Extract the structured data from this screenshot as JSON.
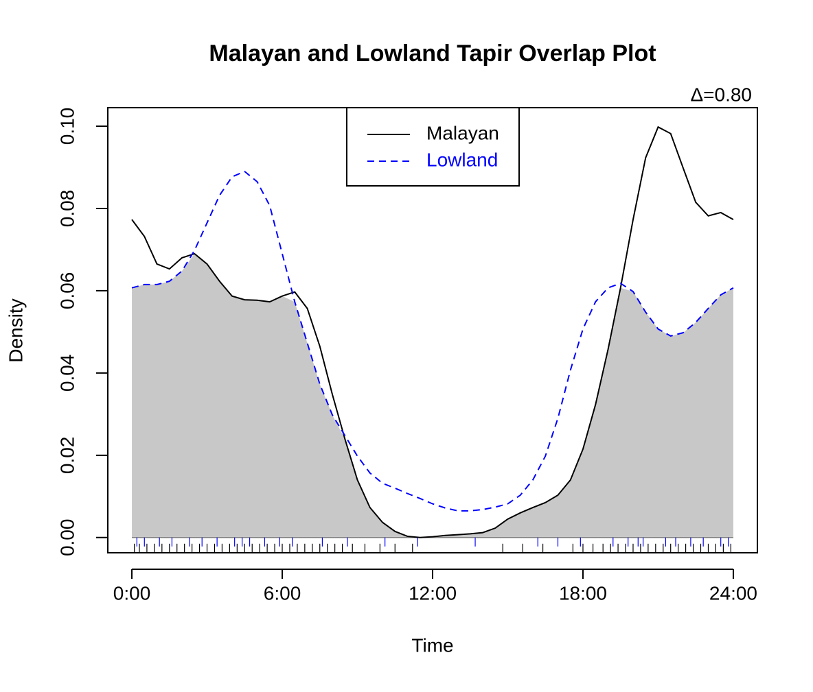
{
  "chart_data": {
    "type": "overlap-density",
    "title": "Malayan and Lowland Tapir Overlap Plot",
    "annotation": "Δ=0.80",
    "x_label": "Time",
    "y_label": "Density",
    "x": [
      0,
      0.5,
      1,
      1.5,
      2,
      2.5,
      3,
      3.5,
      4,
      4.5,
      5,
      5.5,
      6,
      6.5,
      7,
      7.5,
      8,
      8.5,
      9,
      9.5,
      10,
      10.5,
      11,
      11.5,
      12,
      12.5,
      13,
      13.5,
      14,
      14.5,
      15,
      15.5,
      16,
      16.5,
      17,
      17.5,
      18,
      18.5,
      19,
      19.5,
      20,
      20.5,
      21,
      21.5,
      22,
      22.5,
      23,
      23.5,
      24
    ],
    "series": [
      {
        "name": "Malayan",
        "color": "#000000",
        "dash": false,
        "values": [
          0.0773,
          0.0732,
          0.0665,
          0.0653,
          0.068,
          0.069,
          0.0665,
          0.0623,
          0.0587,
          0.0578,
          0.0577,
          0.0573,
          0.0587,
          0.0597,
          0.0557,
          0.0465,
          0.0348,
          0.024,
          0.014,
          0.0073,
          0.0037,
          0.0015,
          0.0003,
          0.0,
          0.0002,
          0.0005,
          0.0007,
          0.0009,
          0.0012,
          0.0023,
          0.0045,
          0.006,
          0.0073,
          0.0085,
          0.0103,
          0.014,
          0.0215,
          0.0323,
          0.0457,
          0.0607,
          0.0773,
          0.0923,
          0.0998,
          0.0982,
          0.0898,
          0.0815,
          0.0782,
          0.079,
          0.0773
        ],
        "rug": [
          0.1,
          0.3,
          0.6,
          0.9,
          1.2,
          1.5,
          1.8,
          2.1,
          2.4,
          2.7,
          3.0,
          3.3,
          3.6,
          3.9,
          4.2,
          4.5,
          4.8,
          5.1,
          5.4,
          5.7,
          6.0,
          6.3,
          6.6,
          6.9,
          7.2,
          7.5,
          7.8,
          8.1,
          8.4,
          8.8,
          9.3,
          9.9,
          10.5,
          11.2,
          14.8,
          15.6,
          16.4,
          17.6,
          18.0,
          18.4,
          18.8,
          19.1,
          19.4,
          19.7,
          20.0,
          20.3,
          20.6,
          20.9,
          21.2,
          21.5,
          21.8,
          22.1,
          22.4,
          22.7,
          23.0,
          23.3,
          23.6,
          23.9
        ]
      },
      {
        "name": "Lowland",
        "color": "#0000ff",
        "dash": true,
        "values": [
          0.0607,
          0.0615,
          0.0615,
          0.0623,
          0.0648,
          0.0698,
          0.0765,
          0.0832,
          0.0877,
          0.089,
          0.0865,
          0.0807,
          0.069,
          0.0573,
          0.0473,
          0.0373,
          0.0298,
          0.0248,
          0.0198,
          0.0157,
          0.0132,
          0.012,
          0.0107,
          0.0095,
          0.0082,
          0.0072,
          0.0065,
          0.0065,
          0.0068,
          0.0074,
          0.0082,
          0.0103,
          0.014,
          0.0198,
          0.029,
          0.0407,
          0.0507,
          0.0573,
          0.0607,
          0.0618,
          0.0598,
          0.0548,
          0.0507,
          0.049,
          0.0498,
          0.0523,
          0.0557,
          0.059,
          0.0607
        ],
        "rug": [
          0.2,
          0.5,
          1.1,
          1.6,
          2.3,
          2.8,
          3.4,
          4.1,
          4.4,
          4.7,
          5.3,
          5.9,
          6.4,
          7.6,
          8.6,
          10.1,
          11.4,
          13.7,
          16.2,
          17.0,
          17.9,
          19.2,
          19.8,
          20.2,
          20.4,
          21.3,
          21.7,
          22.3,
          22.8,
          23.5,
          23.8
        ]
      }
    ],
    "legend": "top",
    "overlap_color": "#c8c8c8",
    "xlim": [
      -0.96,
      24.96
    ],
    "ylim": [
      -0.0037,
      0.1045
    ],
    "xticks": [
      {
        "value": 0,
        "label": "0:00"
      },
      {
        "value": 6,
        "label": "6:00"
      },
      {
        "value": 12,
        "label": "12:00"
      },
      {
        "value": 18,
        "label": "18:00"
      },
      {
        "value": 24,
        "label": "24:00"
      }
    ],
    "yticks": [
      {
        "value": 0,
        "label": "0.00"
      },
      0.02,
      0.04,
      0.06,
      0.08,
      {
        "value": 0.1,
        "label": "0.10"
      }
    ]
  }
}
